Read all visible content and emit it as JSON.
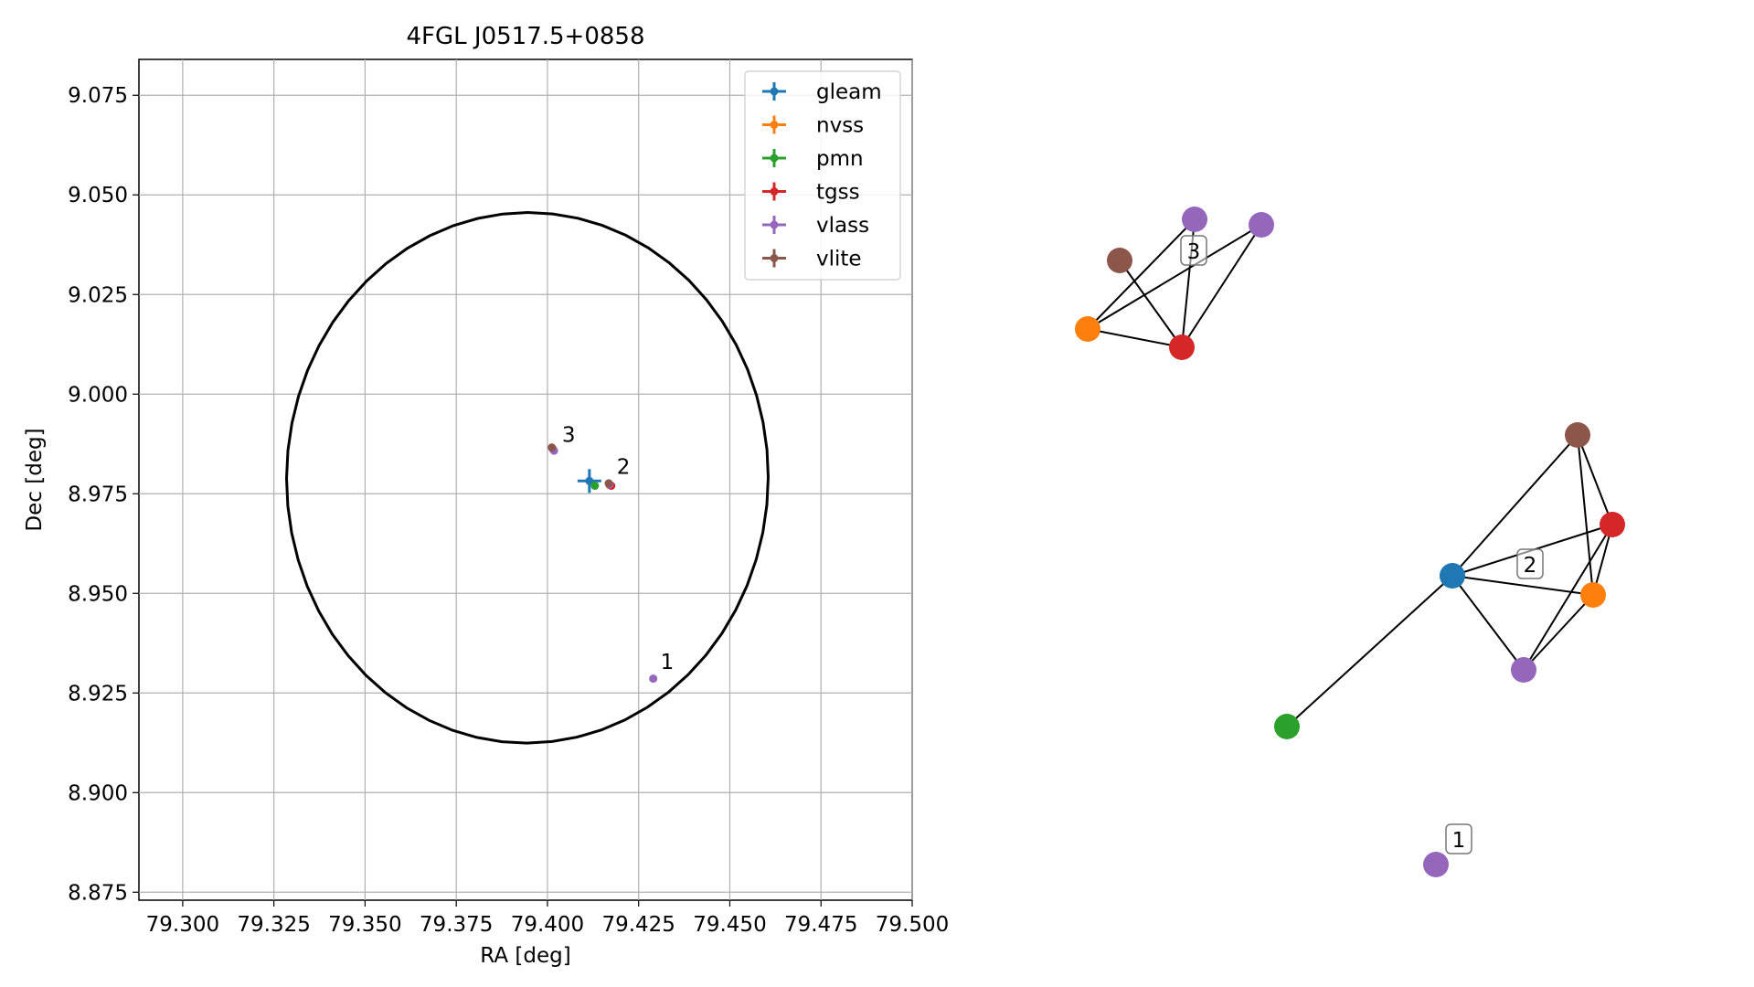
{
  "chart_data": [
    {
      "type": "scatter",
      "title": "4FGL J0517.5+0858",
      "xlabel": "RA [deg]",
      "ylabel": "Dec [deg]",
      "xlim": [
        79.288,
        79.5
      ],
      "ylim": [
        8.873,
        9.084
      ],
      "xticks": [
        "79.300",
        "79.325",
        "79.350",
        "79.375",
        "79.400",
        "79.425",
        "79.450",
        "79.475",
        "79.500"
      ],
      "yticks": [
        "8.875",
        "8.900",
        "8.925",
        "8.950",
        "8.975",
        "9.000",
        "9.025",
        "9.050",
        "9.075"
      ],
      "grid": true,
      "legend_position": "top-right",
      "ellipse": {
        "center": [
          79.3945,
          8.979
        ],
        "semi_axis_ra": 0.066,
        "semi_axis_dec": 0.0666,
        "angle_deg": -12
      },
      "series": [
        {
          "name": "gleam",
          "color": "#1f77b4",
          "points": [
            [
              79.4115,
              8.9782
            ]
          ],
          "errorbars": true
        },
        {
          "name": "nvss",
          "color": "#ff7f0e",
          "points": [
            [
              79.417,
              8.9772
            ]
          ]
        },
        {
          "name": "pmn",
          "color": "#2ca02c",
          "points": [
            [
              79.413,
              8.977
            ]
          ]
        },
        {
          "name": "tgss",
          "color": "#d62728",
          "points": [
            [
              79.4175,
              8.977
            ]
          ]
        },
        {
          "name": "vlass",
          "color": "#9467bd",
          "points": [
            [
              79.429,
              8.9286
            ],
            [
              79.417,
              8.9773
            ],
            [
              79.4015,
              8.9862
            ],
            [
              79.4018,
              8.9858
            ]
          ]
        },
        {
          "name": "vlite",
          "color": "#8c564b",
          "points": [
            [
              79.4168,
              8.9776
            ],
            [
              79.4012,
              8.9866
            ]
          ]
        }
      ],
      "annotations": [
        {
          "text": "1",
          "x": 79.431,
          "y": 8.931
        },
        {
          "text": "2",
          "x": 79.419,
          "y": 8.98
        },
        {
          "text": "3",
          "x": 79.404,
          "y": 8.988
        }
      ]
    },
    {
      "type": "network",
      "clusters": [
        {
          "label": "3",
          "nodes": [
            {
              "id": "a",
              "color": "#8c564b"
            },
            {
              "id": "b",
              "color": "#9467bd"
            },
            {
              "id": "c",
              "color": "#9467bd"
            },
            {
              "id": "d",
              "color": "#ff7f0e"
            },
            {
              "id": "e",
              "color": "#d62728"
            }
          ],
          "edges": [
            [
              "d",
              "b"
            ],
            [
              "d",
              "c"
            ],
            [
              "d",
              "e"
            ],
            [
              "a",
              "e"
            ],
            [
              "b",
              "e"
            ],
            [
              "c",
              "e"
            ]
          ]
        },
        {
          "label": "2",
          "nodes": [
            {
              "id": "f",
              "color": "#8c564b"
            },
            {
              "id": "g",
              "color": "#d62728"
            },
            {
              "id": "h",
              "color": "#1f77b4"
            },
            {
              "id": "i",
              "color": "#ff7f0e"
            },
            {
              "id": "j",
              "color": "#9467bd"
            },
            {
              "id": "k",
              "color": "#2ca02c"
            }
          ],
          "edges": [
            [
              "h",
              "f"
            ],
            [
              "h",
              "g"
            ],
            [
              "h",
              "i"
            ],
            [
              "h",
              "j"
            ],
            [
              "h",
              "k"
            ],
            [
              "f",
              "g"
            ],
            [
              "f",
              "i"
            ],
            [
              "g",
              "i"
            ],
            [
              "g",
              "j"
            ],
            [
              "i",
              "j"
            ]
          ]
        },
        {
          "label": "1",
          "nodes": [
            {
              "id": "l",
              "color": "#9467bd"
            }
          ],
          "edges": []
        }
      ]
    }
  ]
}
